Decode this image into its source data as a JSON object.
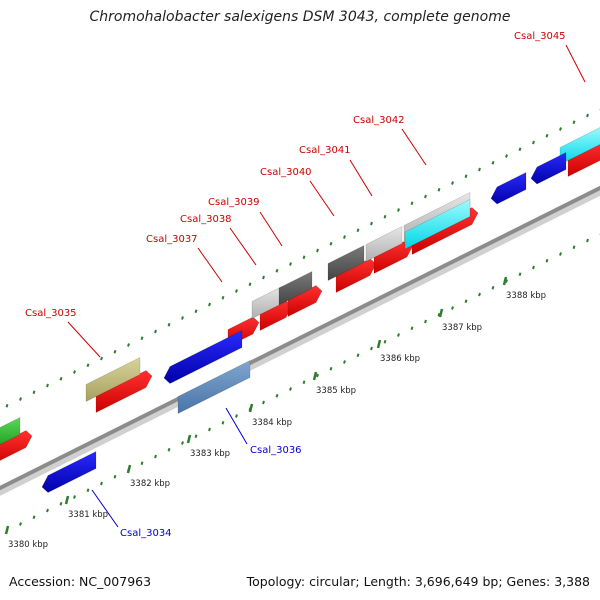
{
  "title": "Chromohalobacter salexigens DSM 3043, complete genome",
  "footer": {
    "accession": "Accession: NC_007963",
    "summary": "Topology: circular; Length: 3,696,649 bp; Genes: 3,388"
  },
  "colors": {
    "forward_label": "#cc0000",
    "reverse_label": "#0000cc",
    "backbone": "#8c8c8c",
    "tick": "#2e7d2e",
    "cds": "#ff0000",
    "cds_reverse": "#0000dd"
  },
  "ticks": [
    {
      "label": "3380 kbp"
    },
    {
      "label": "3381 kbp"
    },
    {
      "label": "3382 kbp"
    },
    {
      "label": "3383 kbp"
    },
    {
      "label": "3384 kbp"
    },
    {
      "label": "3385 kbp"
    },
    {
      "label": "3386 kbp"
    },
    {
      "label": "3387 kbp"
    },
    {
      "label": "3388 kbp"
    }
  ],
  "gene_labels": [
    {
      "name": "Csal_3034",
      "strand": "reverse"
    },
    {
      "name": "Csal_3035",
      "strand": "forward"
    },
    {
      "name": "Csal_3036",
      "strand": "reverse"
    },
    {
      "name": "Csal_3037",
      "strand": "forward"
    },
    {
      "name": "Csal_3038",
      "strand": "forward"
    },
    {
      "name": "Csal_3039",
      "strand": "forward"
    },
    {
      "name": "Csal_3040",
      "strand": "forward"
    },
    {
      "name": "Csal_3041",
      "strand": "forward"
    },
    {
      "name": "Csal_3042",
      "strand": "forward"
    },
    {
      "name": "Csal_3045",
      "strand": "forward"
    }
  ]
}
